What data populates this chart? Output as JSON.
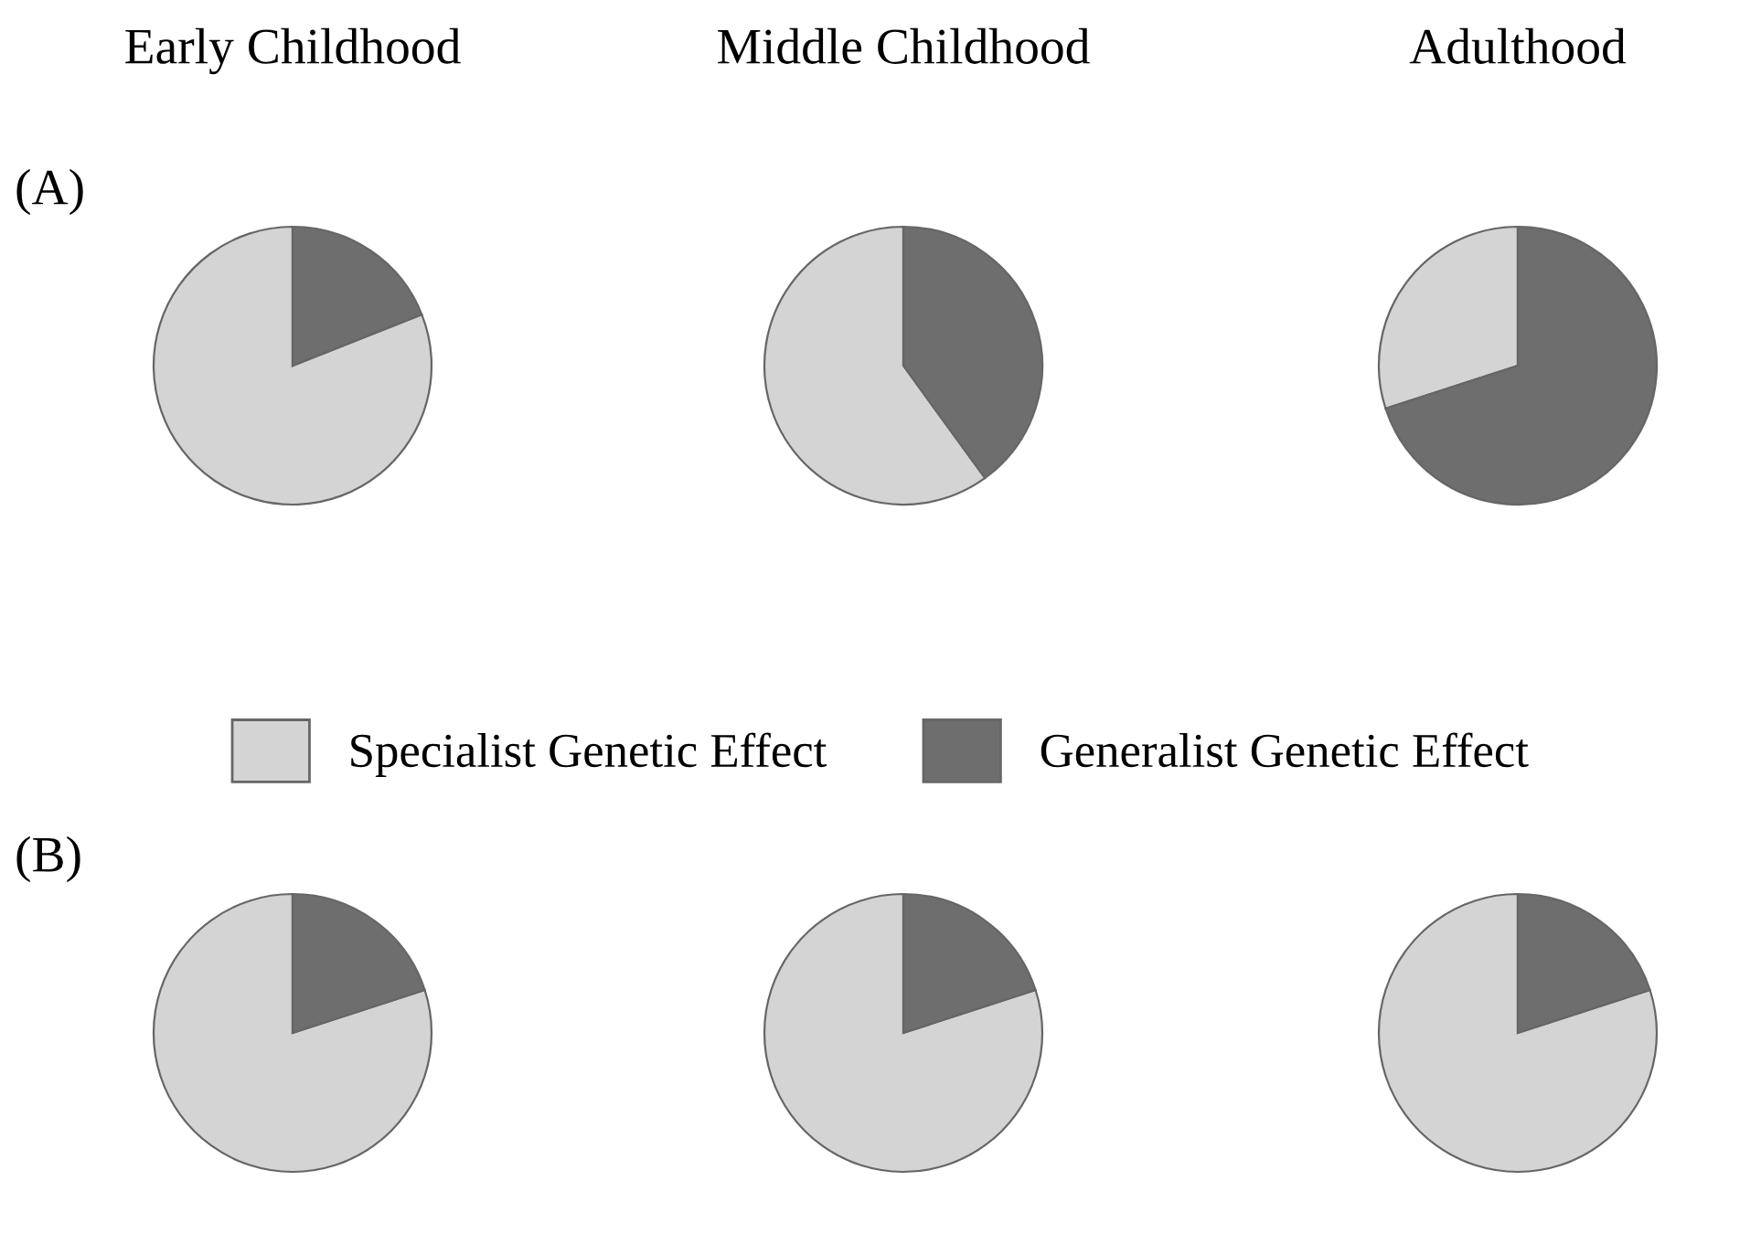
{
  "chart_data": [
    {
      "type": "pie",
      "title": "Early Childhood",
      "annotations": [
        "(A)"
      ],
      "categories": [
        "Specialist Genetic Effect",
        "Generalist Genetic Effect"
      ],
      "values": [
        81,
        19
      ],
      "colors": [
        "#d4d4d4",
        "#6e6e6e"
      ],
      "legend": "bottom"
    },
    {
      "type": "pie",
      "title": "Middle Childhood",
      "categories": [
        null,
        null
      ],
      "values": [
        60,
        40
      ],
      "colors": [
        "#d4d4d4",
        "#6e6e6e"
      ]
    },
    {
      "type": "pie",
      "title": "Adulthood",
      "categories": [
        null,
        null
      ],
      "values": [
        30,
        70
      ],
      "colors": [
        "#d4d4d4",
        "#6e6e6e"
      ]
    },
    {
      "type": "pie",
      "annotations": [
        "(B)"
      ],
      "categories": [
        null,
        null
      ],
      "values": [
        80,
        20
      ],
      "colors": [
        "#d4d4d4",
        "#6e6e6e"
      ]
    },
    {
      "type": "pie",
      "categories": [
        null,
        null
      ],
      "values": [
        80,
        20
      ],
      "colors": [
        "#d4d4d4",
        "#6e6e6e"
      ]
    },
    {
      "type": "pie",
      "categories": [
        null,
        null
      ],
      "values": [
        80,
        20
      ],
      "colors": [
        "#d4d4d4",
        "#6e6e6e"
      ]
    }
  ]
}
